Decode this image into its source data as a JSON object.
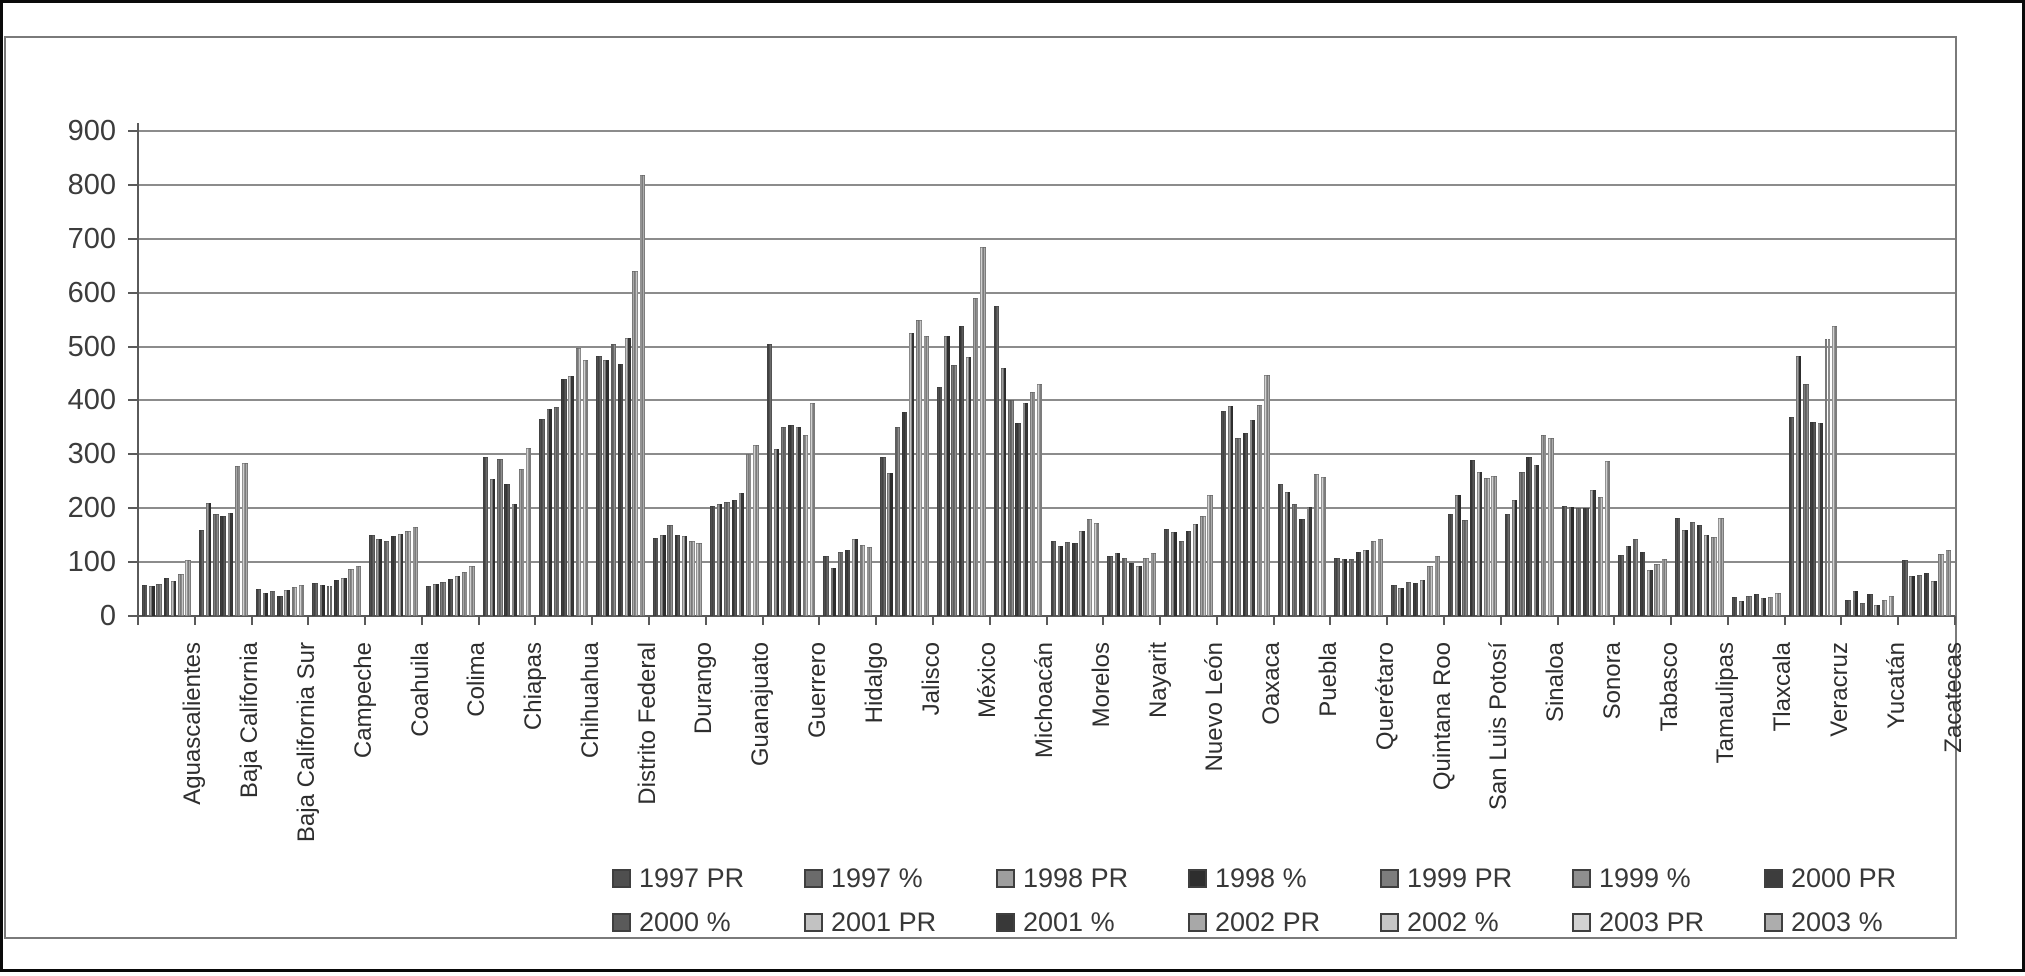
{
  "chart_data": {
    "type": "bar",
    "title": "",
    "xlabel": "",
    "ylabel": "",
    "ylim": [
      0,
      900
    ],
    "ytick_interval": 100,
    "ytick_labels": [
      "0",
      "100",
      "200",
      "300",
      "400",
      "500",
      "600",
      "700",
      "800",
      "900"
    ],
    "grid": true,
    "legend_position": "bottom",
    "categories": [
      "Aguascalientes",
      "Baja California",
      "Baja California Sur",
      "Campeche",
      "Coahuila",
      "Colima",
      "Chiapas",
      "Chihuahua",
      "Distrito Federal",
      "Durango",
      "Guanajuato",
      "Guerrero",
      "Hidalgo",
      "Jalisco",
      "México",
      "Michoacán",
      "Morelos",
      "Nayarit",
      "Nuevo León",
      "Oaxaca",
      "Puebla",
      "Querétaro",
      "Quintana Roo",
      "San Luis Potosí",
      "Sinaloa",
      "Sonora",
      "Tabasco",
      "Tamaulipas",
      "Tlaxcala",
      "Veracruz",
      "Yucatán",
      "Zacatecas"
    ],
    "years": [
      "1997",
      "1998",
      "1999",
      "2000",
      "2001",
      "2002",
      "2003"
    ],
    "series": [
      {
        "label": "1997 PR",
        "color": "#4f4f4f",
        "year": 0,
        "kind": "PR"
      },
      {
        "label": "1997 %",
        "color": "#6b6b6b",
        "year": 0,
        "kind": "%"
      },
      {
        "label": "1998 PR",
        "color": "#9e9e9e",
        "year": 1,
        "kind": "PR"
      },
      {
        "label": "1998 %",
        "color": "#2e2e2e",
        "year": 1,
        "kind": "%"
      },
      {
        "label": "1999 PR",
        "color": "#7d7d7d",
        "year": 2,
        "kind": "PR"
      },
      {
        "label": "1999 %",
        "color": "#8f8f8f",
        "year": 2,
        "kind": "%"
      },
      {
        "label": "2000 PR",
        "color": "#3d3d3d",
        "year": 3,
        "kind": "PR"
      },
      {
        "label": "2000 %",
        "color": "#5a5a5a",
        "year": 3,
        "kind": "%"
      },
      {
        "label": "2001 PR",
        "color": "#c2c2c2",
        "year": 4,
        "kind": "PR"
      },
      {
        "label": "2001 %",
        "color": "#383838",
        "year": 4,
        "kind": "%"
      },
      {
        "label": "2002 PR",
        "color": "#a8a8a8",
        "year": 5,
        "kind": "PR"
      },
      {
        "label": "2002 %",
        "color": "#c6c6c6",
        "year": 5,
        "kind": "%"
      },
      {
        "label": "2003 PR",
        "color": "#d2d2d2",
        "year": 6,
        "kind": "PR"
      },
      {
        "label": "2003 %",
        "color": "#adadad",
        "year": 6,
        "kind": "%"
      }
    ],
    "values_per_state_by_year": [
      [
        58,
        55,
        60,
        70,
        65,
        78,
        103
      ],
      [
        160,
        210,
        190,
        185,
        192,
        278,
        283
      ],
      [
        50,
        43,
        46,
        38,
        49,
        54,
        58
      ],
      [
        62,
        58,
        56,
        66,
        71,
        87,
        93
      ],
      [
        150,
        143,
        140,
        148,
        153,
        157,
        165
      ],
      [
        55,
        60,
        63,
        68,
        74,
        81,
        92
      ],
      [
        295,
        255,
        292,
        245,
        207,
        272,
        312
      ],
      [
        365,
        385,
        388,
        440,
        445,
        498,
        475
      ],
      [
        483,
        475,
        505,
        468,
        515,
        640,
        818
      ],
      [
        145,
        151,
        168,
        150,
        148,
        140,
        135
      ],
      [
        205,
        208,
        212,
        215,
        228,
        300,
        318
      ],
      [
        505,
        310,
        350,
        355,
        350,
        335,
        395
      ],
      [
        112,
        90,
        118,
        122,
        142,
        132,
        128
      ],
      [
        295,
        265,
        350,
        378,
        525,
        550,
        520
      ],
      [
        425,
        520,
        465,
        538,
        480,
        590,
        685
      ],
      [
        575,
        460,
        400,
        358,
        395,
        415,
        430
      ],
      [
        140,
        130,
        138,
        135,
        158,
        180,
        172
      ],
      [
        112,
        117,
        108,
        98,
        92,
        108,
        117
      ],
      [
        162,
        155,
        140,
        158,
        170,
        186,
        225
      ],
      [
        380,
        390,
        330,
        340,
        363,
        392,
        448
      ],
      [
        245,
        230,
        207,
        180,
        202,
        263,
        258
      ],
      [
        108,
        105,
        106,
        119,
        123,
        139,
        143
      ],
      [
        58,
        52,
        64,
        61,
        67,
        92,
        112
      ],
      [
        190,
        225,
        178,
        290,
        267,
        257,
        260
      ],
      [
        190,
        215,
        268,
        295,
        280,
        336,
        330
      ],
      [
        205,
        203,
        200,
        200,
        233,
        220,
        288
      ],
      [
        113,
        130,
        143,
        118,
        85,
        96,
        105
      ],
      [
        182,
        159,
        174,
        168,
        151,
        147,
        182
      ],
      [
        35,
        28,
        38,
        40,
        33,
        35,
        42
      ],
      [
        370,
        482,
        430,
        360,
        358,
        514,
        539
      ],
      [
        30,
        46,
        24,
        41,
        20,
        30,
        38
      ],
      [
        103,
        74,
        77,
        80,
        65,
        115,
        122
      ]
    ],
    "legend_rows": [
      [
        "1997 PR",
        "1997 %",
        "1998 PR",
        "1998 %",
        "1999 PR",
        "1999 %",
        "2000 PR"
      ],
      [
        "2000 %",
        "2001 PR",
        "2001 %",
        "2002 PR",
        "2002 %",
        "2003 PR",
        "2003 %"
      ]
    ]
  },
  "colors": {
    "frame": "#7a7a7a",
    "outer_border": "#0a0a0a",
    "gridline": "#8c8c8c",
    "axis": "#5a5a5a",
    "text": "#3c3c3c",
    "background": "#ffffff"
  }
}
